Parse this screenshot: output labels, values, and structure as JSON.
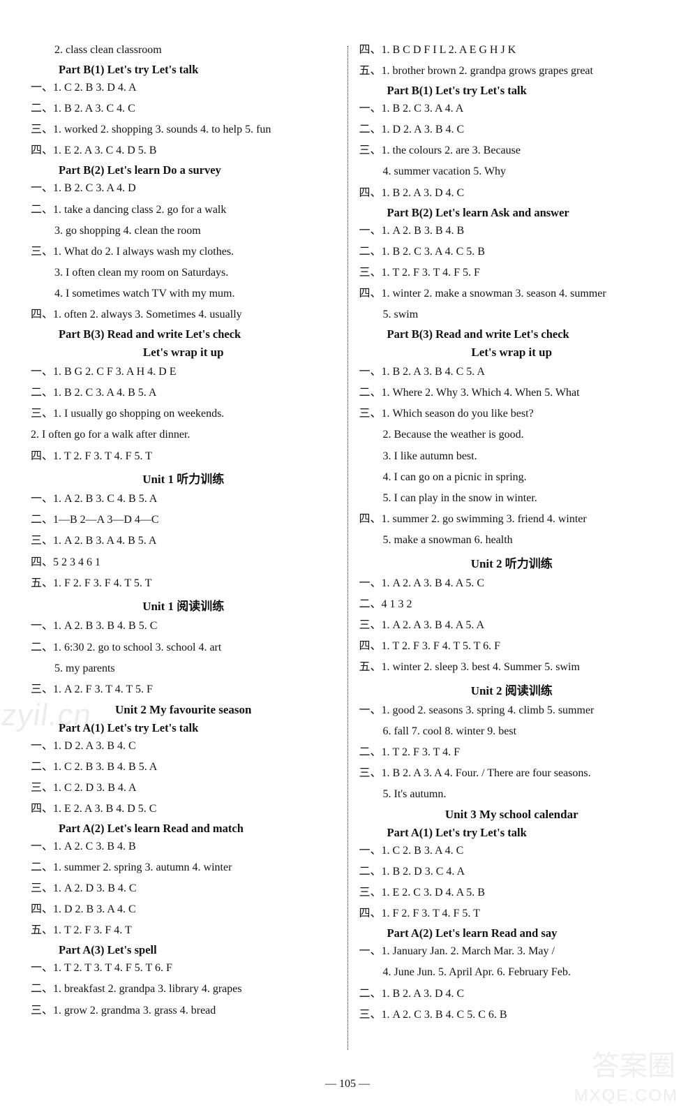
{
  "page_number": "— 105 —",
  "watermarks": {
    "left": "zyil.cn",
    "right_top": "答案圈",
    "right_bottom": "MXQE.COM"
  },
  "left": [
    {
      "t": "line",
      "cls": "indent1",
      "text": "2. class   clean   classroom"
    },
    {
      "t": "head",
      "text": "Part B(1)   Let's try   Let's talk"
    },
    {
      "t": "line",
      "text": "一、1. C   2. B   3. D   4. A"
    },
    {
      "t": "line",
      "text": "二、1. B   2. A   3. C   4. C"
    },
    {
      "t": "line",
      "text": "三、1. worked   2. shopping   3. sounds   4. to help   5. fun"
    },
    {
      "t": "line",
      "text": "四、1. E   2. A   3. C   4. D   5. B"
    },
    {
      "t": "head",
      "text": "Part B(2)   Let's learn   Do a survey"
    },
    {
      "t": "line",
      "text": "一、1. B   2. C   3. A   4. D"
    },
    {
      "t": "line",
      "text": "二、1. take a dancing class   2. go for a walk"
    },
    {
      "t": "line",
      "cls": "indent1",
      "text": "3. go shopping   4. clean the room"
    },
    {
      "t": "line",
      "text": "三、1. What   do   2. I always wash my clothes."
    },
    {
      "t": "line",
      "cls": "indent1",
      "text": "3. I often clean my room on Saturdays."
    },
    {
      "t": "line",
      "cls": "indent1",
      "text": "4. I sometimes watch TV with my mum."
    },
    {
      "t": "line",
      "text": "四、1. often   2. always   3. Sometimes   4. usually"
    },
    {
      "t": "head",
      "text": "Part B(3)   Read and write   Let's check"
    },
    {
      "t": "headc",
      "text": "Let's wrap it up"
    },
    {
      "t": "line",
      "text": "一、1. B   G   2. C   F   3. A   H   4. D   E"
    },
    {
      "t": "line",
      "text": "二、1. B   2. C   3. A   4. B   5. A"
    },
    {
      "t": "line",
      "text": "三、1. I usually go shopping on weekends."
    },
    {
      "t": "line",
      "text": "2. I often go for a walk after dinner."
    },
    {
      "t": "line",
      "text": "四、1. T   2. F   3. T   4. F   5. T"
    },
    {
      "t": "headc",
      "text": "Unit 1   听力训练"
    },
    {
      "t": "line",
      "text": "一、1. A   2. B   3. C   4. B   5. A"
    },
    {
      "t": "line",
      "text": "二、1—B   2—A   3—D   4—C"
    },
    {
      "t": "line",
      "text": "三、1. A   2. B   3. A   4. B   5. A"
    },
    {
      "t": "line",
      "text": "四、5   2   3   4   6   1"
    },
    {
      "t": "line",
      "text": "五、1. F   2. F   3. F   4. T   5. T"
    },
    {
      "t": "headc",
      "text": "Unit 1   阅读训练"
    },
    {
      "t": "line",
      "text": "一、1. A   2. B   3. B   4. B   5. C"
    },
    {
      "t": "line",
      "text": "二、1. 6:30   2. go to school   3. school   4. art"
    },
    {
      "t": "line",
      "cls": "indent1",
      "text": "5. my parents"
    },
    {
      "t": "line",
      "text": "三、1. A   2. F   3. T   4. T   5. F"
    },
    {
      "t": "headc",
      "text": "Unit 2   My favourite season"
    },
    {
      "t": "head",
      "text": "Part A(1)   Let's try   Let's talk"
    },
    {
      "t": "line",
      "text": "一、1. D   2. A   3. B   4. C"
    },
    {
      "t": "line",
      "text": "二、1. C   2. B   3. B   4. B   5. A"
    },
    {
      "t": "line",
      "text": "三、1. C   2. D   3. B   4. A"
    },
    {
      "t": "line",
      "text": "四、1. E   2. A   3. B   4. D   5. C"
    },
    {
      "t": "head",
      "text": "Part A(2)   Let's learn   Read and match"
    },
    {
      "t": "line",
      "text": "一、1. A   2. C   3. B   4. B"
    },
    {
      "t": "line",
      "text": "二、1. summer   2. spring   3. autumn   4. winter"
    },
    {
      "t": "line",
      "text": "三、1. A   2. D   3. B   4. C"
    },
    {
      "t": "line",
      "text": "四、1. D   2. B   3. A   4. C"
    },
    {
      "t": "line",
      "text": "五、1. T   2. F   3. F   4. T"
    },
    {
      "t": "head",
      "text": "Part A(3)   Let's spell"
    },
    {
      "t": "line",
      "text": "一、1. T   2. T   3. T   4. F   5. T   6. F"
    },
    {
      "t": "line",
      "text": "二、1. breakfast   2. grandpa   3. library   4. grapes"
    },
    {
      "t": "line",
      "text": "三、1. grow   2. grandma   3. grass   4. bread"
    }
  ],
  "right": [
    {
      "t": "line",
      "text": "四、1. B   C   D   F   I   L   2. A   E   G   H   J   K"
    },
    {
      "t": "line",
      "text": "五、1. brother   brown   2. grandpa   grows   grapes   great"
    },
    {
      "t": "head",
      "text": "Part B(1)   Let's try   Let's talk"
    },
    {
      "t": "line",
      "text": "一、1. B   2. C   3. A   4. A"
    },
    {
      "t": "line",
      "text": "二、1. D   2. A   3. B   4. C"
    },
    {
      "t": "line",
      "text": "三、1. the colours   2. are   3. Because"
    },
    {
      "t": "line",
      "cls": "indent1",
      "text": "4. summer vacation   5. Why"
    },
    {
      "t": "line",
      "text": "四、1. B   2. A   3. D   4. C"
    },
    {
      "t": "head",
      "text": "Part B(2)   Let's learn   Ask and answer"
    },
    {
      "t": "line",
      "text": "一、1. A   2. B   3. B   4. B"
    },
    {
      "t": "line",
      "text": "二、1. B   2. C   3. A   4. C   5. B"
    },
    {
      "t": "line",
      "text": "三、1. T   2. F   3. T   4. F   5. F"
    },
    {
      "t": "line",
      "text": "四、1. winter   2. make a snowman   3. season   4. summer"
    },
    {
      "t": "line",
      "cls": "indent1",
      "text": "5. swim"
    },
    {
      "t": "head",
      "text": "Part B(3)   Read and write   Let's check"
    },
    {
      "t": "headc",
      "text": "Let's wrap it up"
    },
    {
      "t": "line",
      "text": "一、1. B   2. A   3. B   4. C   5. A"
    },
    {
      "t": "line",
      "text": "二、1. Where   2. Why   3. Which   4. When   5. What"
    },
    {
      "t": "line",
      "text": "三、1. Which season do you like best?"
    },
    {
      "t": "line",
      "cls": "indent1",
      "text": "2. Because the weather is good."
    },
    {
      "t": "line",
      "cls": "indent1",
      "text": "3. I like autumn best."
    },
    {
      "t": "line",
      "cls": "indent1",
      "text": "4. I can go on a picnic in spring."
    },
    {
      "t": "line",
      "cls": "indent1",
      "text": "5. I can play in the snow in winter."
    },
    {
      "t": "line",
      "text": "四、1. summer   2. go swimming   3. friend   4. winter"
    },
    {
      "t": "line",
      "cls": "indent1",
      "text": "5. make a snowman   6. health"
    },
    {
      "t": "headc",
      "text": "Unit 2   听力训练"
    },
    {
      "t": "line",
      "text": "一、1. A   2. A   3. B   4. A   5. C"
    },
    {
      "t": "line",
      "text": "二、4   1   3   2"
    },
    {
      "t": "line",
      "text": "三、1. A   2. A   3. B   4. A   5. A"
    },
    {
      "t": "line",
      "text": "四、1. T   2. F   3. F   4. T   5. T   6. F"
    },
    {
      "t": "line",
      "text": "五、1. winter   2. sleep   3. best   4. Summer   5. swim"
    },
    {
      "t": "headc",
      "text": "Unit 2   阅读训练"
    },
    {
      "t": "line",
      "text": "一、1. good   2. seasons   3. spring   4. climb   5. summer"
    },
    {
      "t": "line",
      "cls": "indent1",
      "text": "6. fall   7. cool   8. winter   9. best"
    },
    {
      "t": "line",
      "text": "二、1. T   2. F   3. T   4. F"
    },
    {
      "t": "line",
      "text": "三、1. B   2. A   3. A   4. Four. / There are four seasons."
    },
    {
      "t": "line",
      "cls": "indent1",
      "text": "5. It's autumn."
    },
    {
      "t": "headc",
      "text": "Unit 3   My school calendar"
    },
    {
      "t": "head",
      "text": "Part A(1)   Let's try   Let's talk"
    },
    {
      "t": "line",
      "text": "一、1. C   2. B   3. A   4. C"
    },
    {
      "t": "line",
      "text": "二、1. B   2. D   3. C   4. A"
    },
    {
      "t": "line",
      "text": "三、1. E   2. C   3. D   4. A   5. B"
    },
    {
      "t": "line",
      "text": "四、1. F   2. F   3. T   4. F   5. T"
    },
    {
      "t": "head",
      "text": "Part A(2)   Let's learn   Read and say"
    },
    {
      "t": "line",
      "text": "一、1. January   Jan.   2. March   Mar.   3. May   /"
    },
    {
      "t": "line",
      "cls": "indent1",
      "text": "4. June   Jun.   5. April   Apr.   6. February   Feb."
    },
    {
      "t": "line",
      "text": "二、1. B   2. A   3. D   4. C"
    },
    {
      "t": "line",
      "text": "三、1. A   2. C   3. B   4. C   5. C   6. B"
    }
  ]
}
